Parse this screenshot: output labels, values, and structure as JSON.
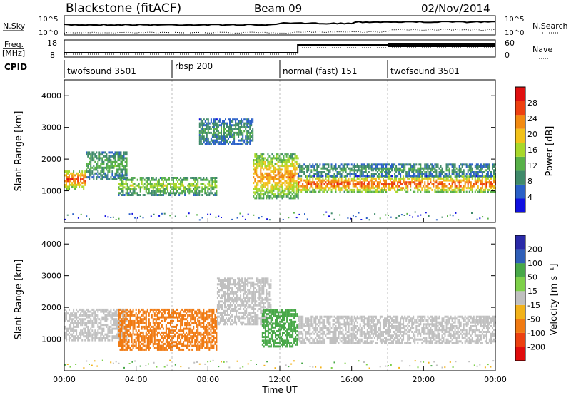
{
  "header": {
    "station": "Blackstone (fitACF)",
    "beam": "Beam 09",
    "date": "02/Nov/2014"
  },
  "left_labels": {
    "nsky": "N.Sky",
    "freq": "Freq.",
    "freq_unit": "[MHz]",
    "cpid": "CPID"
  },
  "right_labels": {
    "nsearch": "N.Search",
    "nave": "Nave"
  },
  "noise_panel": {
    "left_ticks": [
      "10^5",
      "10^0"
    ],
    "right_ticks": [
      "10^5",
      "10^0"
    ]
  },
  "freq_panel": {
    "left_ticks": [
      "18",
      "8"
    ],
    "right_ticks": [
      "60",
      "0"
    ]
  },
  "cpid_segments": [
    {
      "label": "twofsound 3501",
      "start_h": 0
    },
    {
      "label": "rbsp 200",
      "start_h": 6
    },
    {
      "label": "normal (fast) 151",
      "start_h": 12
    },
    {
      "label": "twofsound 3501",
      "start_h": 18
    }
  ],
  "x_axis": {
    "label": "Time UT",
    "ticks": [
      "00:00",
      "04:00",
      "08:00",
      "12:00",
      "16:00",
      "20:00",
      "00:00"
    ]
  },
  "power_panel": {
    "ylabel": "Slant Range [km]",
    "yticks": [
      "1000",
      "2000",
      "3000",
      "4000"
    ],
    "colorbar_label": "Power [dB]",
    "colorbar_ticks": [
      "4",
      "8",
      "12",
      "16",
      "20",
      "24",
      "28"
    ],
    "colors": [
      "#1010e0",
      "#2a60c8",
      "#3f8a6a",
      "#57b048",
      "#a8d82a",
      "#f2c21a",
      "#f28a10",
      "#ee4010",
      "#e01010"
    ]
  },
  "velocity_panel": {
    "ylabel": "Slant Range [km]",
    "yticks": [
      "1000",
      "2000",
      "3000",
      "4000"
    ],
    "colorbar_label": "Velocity [m s⁻¹]",
    "colorbar_ticks": [
      "200",
      "100",
      "50",
      "15",
      "-15",
      "-50",
      "-100",
      "-200"
    ],
    "colors": [
      "#2a2aa8",
      "#2f5fb8",
      "#48a848",
      "#7ed04a",
      "#c0c0c0",
      "#f2b21a",
      "#f07a12",
      "#ec4010",
      "#e00c0c"
    ]
  },
  "chart_data": {
    "type": "heatmap",
    "x_range_hours": [
      0,
      24
    ],
    "y_range_km": [
      0,
      4500
    ],
    "power_echo_bands": [
      {
        "from_h": 0.0,
        "to_h": 1.2,
        "range_km": [
          1100,
          1700
        ],
        "power_db": 28
      },
      {
        "from_h": 1.2,
        "to_h": 3.5,
        "range_km": [
          1400,
          2300
        ],
        "power_db": 12
      },
      {
        "from_h": 3.0,
        "to_h": 8.5,
        "range_km": [
          900,
          1500
        ],
        "power_db": 16
      },
      {
        "from_h": 7.5,
        "to_h": 10.5,
        "range_km": [
          2500,
          3300
        ],
        "power_db": 10
      },
      {
        "from_h": 10.5,
        "to_h": 13.0,
        "range_km": [
          800,
          2200
        ],
        "power_db": 24
      },
      {
        "from_h": 13.0,
        "to_h": 24.0,
        "range_km": [
          1000,
          1500
        ],
        "power_db": 28
      },
      {
        "from_h": 13.0,
        "to_h": 24.0,
        "range_km": [
          1500,
          1900
        ],
        "power_db": 10
      }
    ],
    "velocity_echo_bands": [
      {
        "from_h": 0.0,
        "to_h": 3.5,
        "range_km": [
          1000,
          2000
        ],
        "velocity_ms": 0
      },
      {
        "from_h": 3.0,
        "to_h": 8.5,
        "range_km": [
          700,
          2000
        ],
        "velocity_ms": -60
      },
      {
        "from_h": 8.5,
        "to_h": 11.5,
        "range_km": [
          1500,
          3000
        ],
        "velocity_ms": 0
      },
      {
        "from_h": 11.0,
        "to_h": 13.0,
        "range_km": [
          800,
          2000
        ],
        "velocity_ms": 40
      },
      {
        "from_h": 13.0,
        "to_h": 24.0,
        "range_km": [
          900,
          1800
        ],
        "velocity_ms": 0
      }
    ]
  }
}
